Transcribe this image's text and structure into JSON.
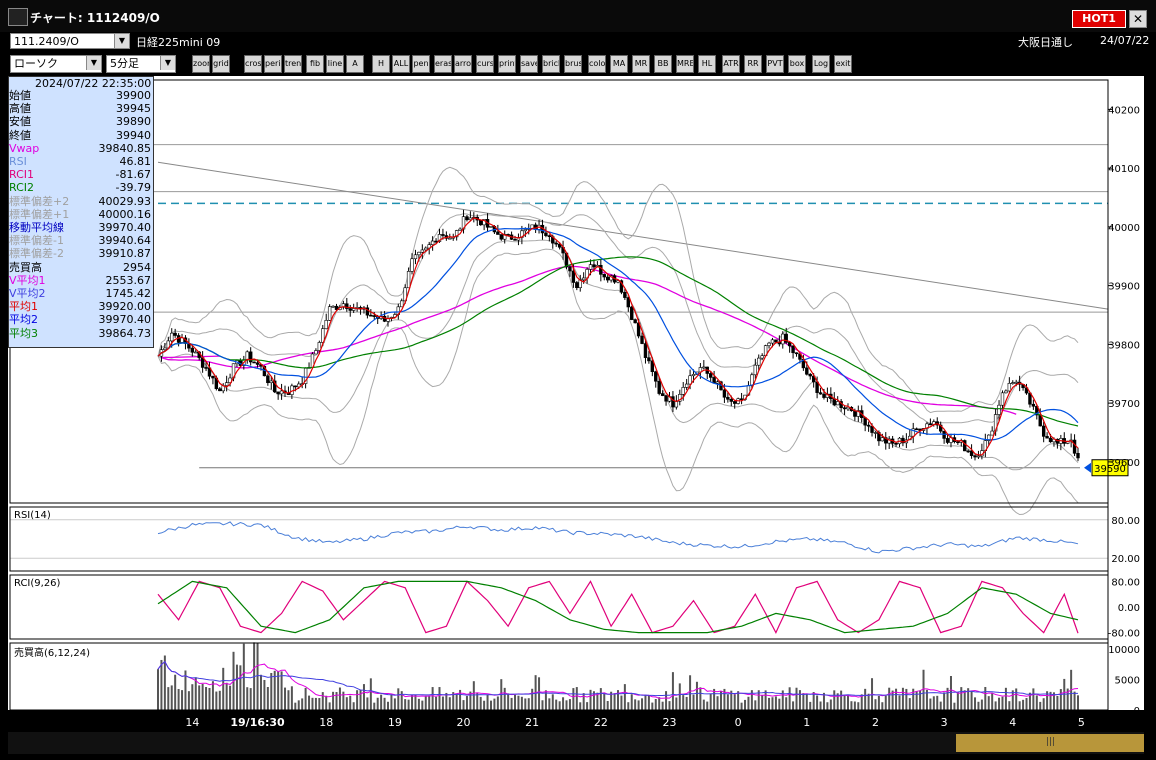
{
  "window": {
    "title": "チャート: 1112409/O",
    "hot_label": "HOT1",
    "close_label": "✕"
  },
  "toolbar1": {
    "symbol_code": "111.2409/O",
    "symbol_name": "日経225mini 09",
    "market": "大阪日通し",
    "date": "24/07/22"
  },
  "toolbar2": {
    "chart_type": "ローソク",
    "interval": "5分足",
    "buttons": [
      "zoom",
      "grid",
      "cross",
      "period",
      "trend",
      "fib",
      "line",
      "A",
      "H",
      "ALL",
      "pen",
      "eraser",
      "arrow",
      "cursor",
      "print",
      "save",
      "brick",
      "brush",
      "color",
      "MA",
      "MR",
      "BB",
      "MRE",
      "HL",
      "ATR",
      "RR",
      "PVT",
      "box",
      "Log",
      "exit"
    ]
  },
  "info_panel": {
    "timestamp": "2024/07/22 22:35:00",
    "rows": [
      {
        "label": "始値",
        "value": "39900",
        "color": "#000000"
      },
      {
        "label": "高値",
        "value": "39945",
        "color": "#000000"
      },
      {
        "label": "安値",
        "value": "39890",
        "color": "#000000"
      },
      {
        "label": "終値",
        "value": "39940",
        "color": "#000000"
      },
      {
        "label": "Vwap",
        "value": "39840.85",
        "color": "#e000e0"
      },
      {
        "label": "RSI",
        "value": "46.81",
        "color": "#6a8fd8"
      },
      {
        "label": "RCI1",
        "value": "-81.67",
        "color": "#e0007a"
      },
      {
        "label": "RCI2",
        "value": "-39.79",
        "color": "#008000"
      },
      {
        "label": "標準偏差+2",
        "value": "40029.93",
        "color": "#a0a0a0"
      },
      {
        "label": "標準偏差+1",
        "value": "40000.16",
        "color": "#a0a0a0"
      },
      {
        "label": "移動平均線",
        "value": "39970.40",
        "color": "#0000c0"
      },
      {
        "label": "標準偏差-1",
        "value": "39940.64",
        "color": "#a0a0a0"
      },
      {
        "label": "標準偏差-2",
        "value": "39910.87",
        "color": "#a0a0a0"
      },
      {
        "label": "売買高",
        "value": "2954",
        "color": "#000000"
      },
      {
        "label": "V平均1",
        "value": "2553.67",
        "color": "#e000e0"
      },
      {
        "label": "V平均2",
        "value": "1745.42",
        "color": "#4040e0"
      },
      {
        "label": "平均1",
        "value": "39920.00",
        "color": "#e00000"
      },
      {
        "label": "平均2",
        "value": "39970.40",
        "color": "#0000e0"
      },
      {
        "label": "平均3",
        "value": "39864.73",
        "color": "#008000"
      }
    ]
  },
  "chart_data": [
    {
      "type": "candlestick",
      "y_ticks": [
        "40200",
        "40100",
        "40000",
        "39900",
        "39800",
        "39700",
        "39600"
      ],
      "ylim": [
        39530,
        40250
      ],
      "last_price": "39590",
      "x_ticks": [
        {
          "label": "14",
          "i": 10
        },
        {
          "label": "19/16:30",
          "i": 29
        },
        {
          "label": "18",
          "i": 49
        },
        {
          "label": "19",
          "i": 69
        },
        {
          "label": "20",
          "i": 89
        },
        {
          "label": "21",
          "i": 109
        },
        {
          "label": "22",
          "i": 129
        },
        {
          "label": "23",
          "i": 149
        },
        {
          "label": "0",
          "i": 169
        },
        {
          "label": "1",
          "i": 189
        },
        {
          "label": "2",
          "i": 209
        },
        {
          "label": "3",
          "i": 229
        },
        {
          "label": "4",
          "i": 249
        },
        {
          "label": "5",
          "i": 269
        }
      ],
      "n_bars": 268,
      "dashed_level": 40040,
      "hlines": [
        40140,
        40060,
        39855
      ],
      "hline_low": {
        "value": 39590,
        "i_start": 12
      },
      "trendline": {
        "i0": 0,
        "y0": 40110,
        "i1": 268,
        "y1": 39860
      },
      "close_anchors": [
        [
          0,
          39780
        ],
        [
          4,
          39820
        ],
        [
          10,
          39790
        ],
        [
          14,
          39760
        ],
        [
          18,
          39720
        ],
        [
          22,
          39760
        ],
        [
          26,
          39780
        ],
        [
          30,
          39760
        ],
        [
          34,
          39720
        ],
        [
          38,
          39720
        ],
        [
          42,
          39740
        ],
        [
          46,
          39790
        ],
        [
          50,
          39860
        ],
        [
          54,
          39870
        ],
        [
          58,
          39860
        ],
        [
          62,
          39850
        ],
        [
          66,
          39840
        ],
        [
          70,
          39860
        ],
        [
          74,
          39940
        ],
        [
          78,
          39960
        ],
        [
          82,
          39990
        ],
        [
          86,
          39980
        ],
        [
          90,
          40020
        ],
        [
          94,
          40010
        ],
        [
          98,
          39990
        ],
        [
          102,
          39980
        ],
        [
          106,
          39990
        ],
        [
          110,
          40000
        ],
        [
          114,
          39990
        ],
        [
          118,
          39950
        ],
        [
          122,
          39900
        ],
        [
          126,
          39940
        ],
        [
          130,
          39920
        ],
        [
          134,
          39910
        ],
        [
          138,
          39850
        ],
        [
          142,
          39780
        ],
        [
          146,
          39720
        ],
        [
          150,
          39700
        ],
        [
          154,
          39740
        ],
        [
          158,
          39760
        ],
        [
          162,
          39740
        ],
        [
          166,
          39700
        ],
        [
          170,
          39700
        ],
        [
          174,
          39760
        ],
        [
          178,
          39800
        ],
        [
          182,
          39810
        ],
        [
          186,
          39780
        ],
        [
          190,
          39740
        ],
        [
          194,
          39710
        ],
        [
          198,
          39700
        ],
        [
          202,
          39690
        ],
        [
          206,
          39670
        ],
        [
          210,
          39640
        ],
        [
          214,
          39630
        ],
        [
          218,
          39640
        ],
        [
          222,
          39660
        ],
        [
          226,
          39670
        ],
        [
          230,
          39640
        ],
        [
          234,
          39630
        ],
        [
          238,
          39610
        ],
        [
          242,
          39640
        ],
        [
          246,
          39720
        ],
        [
          250,
          39740
        ],
        [
          254,
          39700
        ],
        [
          258,
          39650
        ],
        [
          262,
          39630
        ],
        [
          266,
          39640
        ],
        [
          268,
          39600
        ]
      ]
    },
    {
      "type": "line",
      "title": "RSI(14)",
      "y_ticks": [
        "80.00",
        "20.00"
      ],
      "ylim": [
        0,
        100
      ],
      "series": [
        {
          "values_anchor": [
            [
              0,
              60
            ],
            [
              10,
              72
            ],
            [
              20,
              74
            ],
            [
              30,
              72
            ],
            [
              40,
              52
            ],
            [
              50,
              44
            ],
            [
              60,
              50
            ],
            [
              70,
              60
            ],
            [
              80,
              62
            ],
            [
              90,
              70
            ],
            [
              100,
              64
            ],
            [
              110,
              68
            ],
            [
              120,
              60
            ],
            [
              130,
              58
            ],
            [
              140,
              54
            ],
            [
              150,
              44
            ],
            [
              160,
              40
            ],
            [
              170,
              38
            ],
            [
              180,
              46
            ],
            [
              190,
              50
            ],
            [
              200,
              44
            ],
            [
              210,
              30
            ],
            [
              220,
              36
            ],
            [
              230,
              42
            ],
            [
              240,
              38
            ],
            [
              250,
              52
            ],
            [
              260,
              48
            ],
            [
              268,
              42
            ]
          ]
        }
      ]
    },
    {
      "type": "line",
      "title": "RCI(9,26)",
      "y_ticks": [
        "80.00",
        "0.00",
        "-80.00"
      ],
      "ylim": [
        -100,
        100
      ],
      "series": [
        {
          "values_anchor": [
            [
              0,
              40
            ],
            [
              6,
              -40
            ],
            [
              12,
              80
            ],
            [
              18,
              60
            ],
            [
              24,
              -60
            ],
            [
              30,
              -80
            ],
            [
              36,
              -20
            ],
            [
              42,
              80
            ],
            [
              48,
              50
            ],
            [
              54,
              -40
            ],
            [
              60,
              20
            ],
            [
              66,
              80
            ],
            [
              72,
              60
            ],
            [
              78,
              -80
            ],
            [
              84,
              -60
            ],
            [
              90,
              80
            ],
            [
              96,
              20
            ],
            [
              102,
              -60
            ],
            [
              108,
              60
            ],
            [
              114,
              80
            ],
            [
              120,
              -20
            ],
            [
              126,
              80
            ],
            [
              132,
              -60
            ],
            [
              138,
              40
            ],
            [
              144,
              -80
            ],
            [
              150,
              -60
            ],
            [
              156,
              20
            ],
            [
              162,
              -80
            ],
            [
              168,
              -60
            ],
            [
              174,
              40
            ],
            [
              180,
              -80
            ],
            [
              186,
              60
            ],
            [
              192,
              80
            ],
            [
              198,
              -40
            ],
            [
              204,
              -80
            ],
            [
              210,
              -40
            ],
            [
              216,
              80
            ],
            [
              222,
              60
            ],
            [
              228,
              -80
            ],
            [
              234,
              -60
            ],
            [
              240,
              80
            ],
            [
              246,
              60
            ],
            [
              252,
              -20
            ],
            [
              258,
              -80
            ],
            [
              264,
              40
            ],
            [
              268,
              -82
            ]
          ]
        },
        {
          "values_anchor": [
            [
              0,
              10
            ],
            [
              10,
              80
            ],
            [
              20,
              60
            ],
            [
              30,
              -60
            ],
            [
              40,
              -80
            ],
            [
              50,
              -40
            ],
            [
              60,
              60
            ],
            [
              70,
              80
            ],
            [
              80,
              80
            ],
            [
              90,
              80
            ],
            [
              100,
              60
            ],
            [
              110,
              20
            ],
            [
              120,
              -40
            ],
            [
              130,
              -70
            ],
            [
              140,
              -80
            ],
            [
              150,
              -80
            ],
            [
              160,
              -80
            ],
            [
              170,
              -60
            ],
            [
              180,
              -20
            ],
            [
              190,
              -40
            ],
            [
              200,
              -80
            ],
            [
              210,
              -70
            ],
            [
              220,
              -60
            ],
            [
              230,
              -20
            ],
            [
              240,
              60
            ],
            [
              250,
              40
            ],
            [
              260,
              -20
            ],
            [
              268,
              -40
            ]
          ]
        }
      ]
    },
    {
      "type": "bar",
      "title": "売買高(6,12,24)",
      "y_ticks": [
        "10000",
        "5000",
        "0"
      ],
      "ylim": [
        0,
        11000
      ]
    }
  ]
}
